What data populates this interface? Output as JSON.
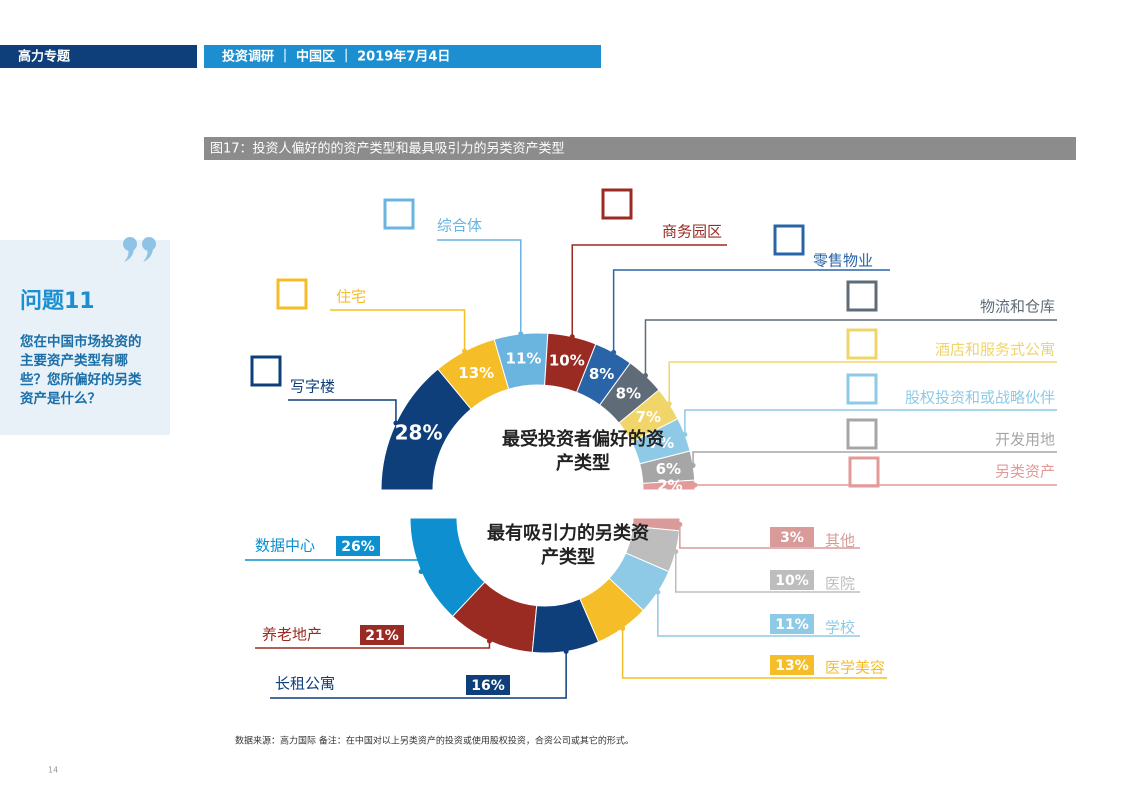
{
  "header": {
    "section": "高力专题",
    "subtitle": "投资调研 ｜ 中国区 ｜ 2019年7月4日"
  },
  "figure_title": "图17：投资人偏好的的资产类型和最具吸引力的另类资产类型",
  "sidebar": {
    "question": "问题11",
    "text": "您在中国市场投资的主要资产类型有哪些？您所偏好的另类资产是什么？"
  },
  "chart_data": [
    {
      "type": "pie",
      "title": "最受投资者偏好的资产类型",
      "categories": [
        "写字楼",
        "住宅",
        "综合体",
        "商务园区",
        "零售物业",
        "物流和仓库",
        "酒店和服务式公寓",
        "股权投资和或战略伙伴",
        "开发用地",
        "另类资产"
      ],
      "values": [
        28,
        13,
        11,
        10,
        8,
        8,
        7,
        7,
        6,
        2
      ],
      "value_labels": [
        "28%",
        "13%",
        "11%",
        "10%",
        "8%",
        "8%",
        "7%",
        "7%",
        "6%",
        "2%"
      ],
      "colors": [
        "#0e3f7a",
        "#f5bd27",
        "#6ab4e0",
        "#9a2b22",
        "#2a64a8",
        "#5f6c78",
        "#f0d56a",
        "#8ecae6",
        "#a6a6a6",
        "#e39a9a"
      ]
    },
    {
      "type": "pie",
      "title": "最有吸引力的另类资产类型",
      "categories": [
        "数据中心",
        "养老地产",
        "长租公寓",
        "医学美容",
        "学校",
        "医院",
        "其他"
      ],
      "values": [
        26,
        21,
        16,
        13,
        11,
        10,
        3
      ],
      "value_labels": [
        "26%",
        "21%",
        "16%",
        "13%",
        "11%",
        "10%",
        "3%"
      ],
      "colors": [
        "#0d8fd0",
        "#9a2b22",
        "#0e3f7a",
        "#f5bd27",
        "#8ecae6",
        "#bdbdbd",
        "#d99a9a"
      ]
    }
  ],
  "source": "数据来源：高力国际 备注：在中国对以上另类资产的投资或使用股权投资，合资公司或其它的形式。",
  "page_number": "14"
}
